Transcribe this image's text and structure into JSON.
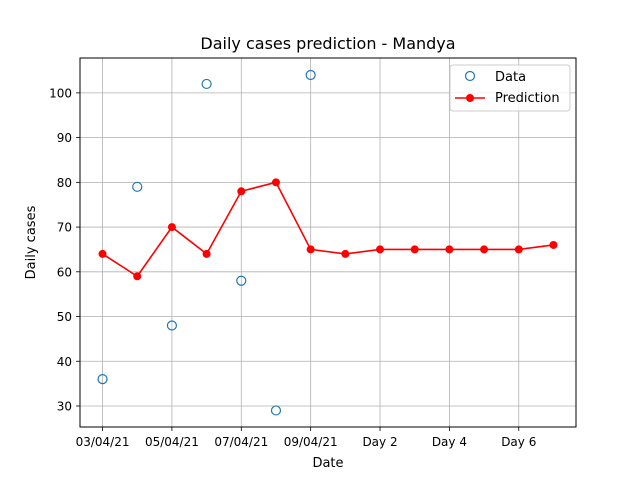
{
  "chart_data": {
    "type": "line",
    "title": "Daily cases prediction - Mandya",
    "xlabel": "Date",
    "ylabel": "Daily cases",
    "x_tick_labels": [
      "03/04/21",
      "05/04/21",
      "07/04/21",
      "09/04/21",
      "Day 2",
      "Day 4",
      "Day 6"
    ],
    "x_tick_positions": [
      0,
      2,
      4,
      6,
      8,
      10,
      12
    ],
    "xlim": [
      -0.65,
      13.65
    ],
    "y_ticks": [
      30,
      40,
      50,
      60,
      70,
      80,
      90,
      100
    ],
    "ylim": [
      25.3,
      107.8
    ],
    "grid": true,
    "legend_position": "top-right",
    "series": [
      {
        "name": "Data",
        "style": "markers-hollow",
        "color": "#1f77b4",
        "x": [
          0,
          1,
          2,
          3,
          4,
          5,
          6
        ],
        "values": [
          36,
          79,
          48,
          102,
          58,
          29,
          104
        ]
      },
      {
        "name": "Prediction",
        "style": "line-markers",
        "color": "#ff0000",
        "x": [
          0,
          1,
          2,
          3,
          4,
          5,
          6,
          7,
          8,
          9,
          10,
          11,
          12,
          13
        ],
        "values": [
          64,
          59,
          70,
          64,
          78,
          80,
          65,
          64,
          65,
          65,
          65,
          65,
          65,
          66
        ]
      }
    ]
  }
}
